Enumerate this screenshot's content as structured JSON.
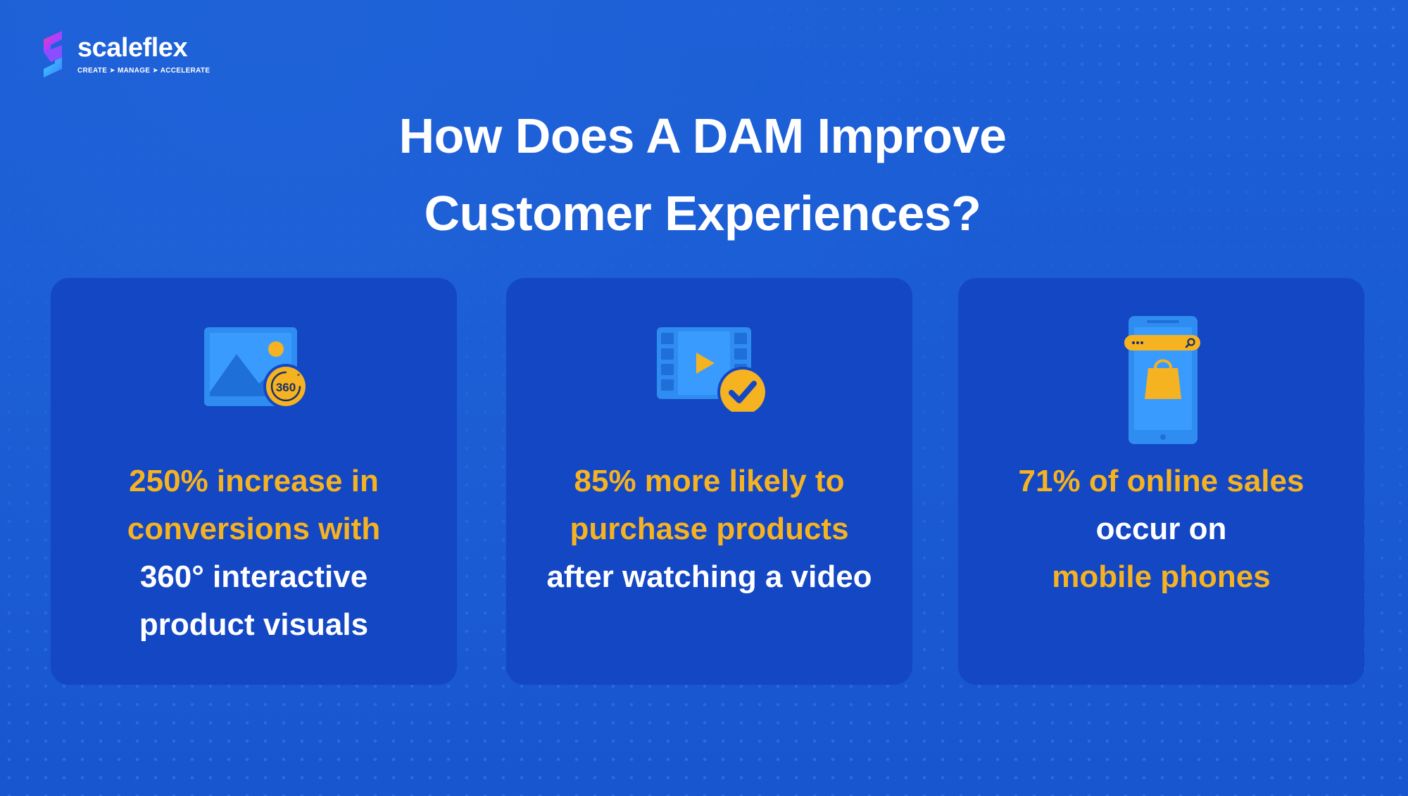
{
  "brand": {
    "name": "scaleflex",
    "tagline": "CREATE ➤ MANAGE ➤ ACCELERATE"
  },
  "headline": {
    "line1": "How Does A DAM Improve",
    "line2": "Customer Experiences?"
  },
  "cards": [
    {
      "icon": "image-360-icon",
      "badge": "360",
      "highlight_lines": [
        "250% increase in",
        "conversions with"
      ],
      "plain_lines": [
        "360° interactive",
        "product visuals"
      ]
    },
    {
      "icon": "video-check-icon",
      "highlight_lines": [
        "85% more likely to",
        "purchase products"
      ],
      "plain_lines": [
        "after watching a video"
      ]
    },
    {
      "icon": "mobile-shopping-icon",
      "highlight_lines": [
        "71% of online sales"
      ],
      "plain_lines": [
        "occur on"
      ],
      "highlight_after": [
        "mobile phones"
      ]
    }
  ],
  "colors": {
    "background": "#1a5ad2",
    "card": "#1447c4",
    "accent_yellow": "#f5b221",
    "icon_blue": "#2f8cf0",
    "text_white": "#ffffff"
  }
}
